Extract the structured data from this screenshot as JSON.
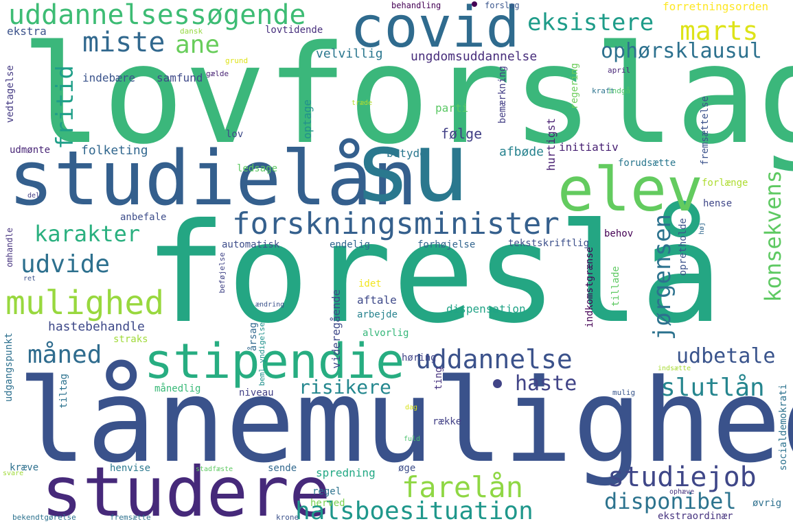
{
  "words": [
    {
      "text": "lovforslag",
      "color": "#3bb77b"
    },
    {
      "text": "foreslå",
      "color": "#24a683"
    },
    {
      "text": "lånemulighed",
      "color": "#3a528b"
    },
    {
      "text": "studielån",
      "color": "#345f8d"
    },
    {
      "text": "su",
      "color": "#2a788e"
    },
    {
      "text": "covid",
      "color": "#2f6b8e"
    },
    {
      "text": "studere",
      "color": "#46297a"
    },
    {
      "text": "elev",
      "color": "#63cb5f"
    },
    {
      "text": "stipendie",
      "color": "#27ad81"
    },
    {
      "text": "forskningsminister",
      "color": "#35608d"
    },
    {
      "text": "uddannelsessøgende",
      "color": "#3dbc74"
    },
    {
      "text": "mulighed",
      "color": "#98d83e"
    },
    {
      "text": "udvide",
      "color": "#2d708e"
    },
    {
      "text": "karakter",
      "color": "#2ab07f"
    },
    {
      "text": "miste",
      "color": "#31688e"
    },
    {
      "text": "ane",
      "color": "#68cd5b"
    },
    {
      "text": "fritid",
      "color": "#1f9f88"
    },
    {
      "text": "eksistere",
      "color": "#1e9c89"
    },
    {
      "text": "marts",
      "color": "#dde318"
    },
    {
      "text": "ophørsklausul",
      "color": "#2d718e"
    },
    {
      "text": "uddannelse",
      "color": "#3b528b"
    },
    {
      "text": "udbetale",
      "color": "#3a548c"
    },
    {
      "text": "haste",
      "color": "#414487"
    },
    {
      "text": "slutlån",
      "color": "#25858e"
    },
    {
      "text": "risikere",
      "color": "#24878e"
    },
    {
      "text": "måned",
      "color": "#2f6c8e"
    },
    {
      "text": "studiejob",
      "color": "#3f4788"
    },
    {
      "text": "farelån",
      "color": "#8fd744"
    },
    {
      "text": "halsboesituation",
      "color": "#1f978b"
    },
    {
      "text": "disponibel",
      "color": "#2c738e"
    },
    {
      "text": "jørgensen",
      "color": "#2c728e"
    },
    {
      "text": "konsekvens",
      "color": "#5ec962"
    },
    {
      "text": "velvillig",
      "color": "#2a768e"
    },
    {
      "text": "ungdomsuddannelse",
      "color": "#472d7b"
    },
    {
      "text": "indebære",
      "color": "#3a538b"
    },
    {
      "text": "samfund",
      "color": "#3e4989"
    },
    {
      "text": "folketing",
      "color": "#31678e"
    },
    {
      "text": "følge",
      "color": "#424086"
    },
    {
      "text": "afbøde",
      "color": "#26828e"
    },
    {
      "text": "parti",
      "color": "#5ac864"
    },
    {
      "text": "optage",
      "color": "#21918c"
    },
    {
      "text": "bemærkning",
      "color": "#433e85"
    },
    {
      "text": "hurtigst",
      "color": "#481f71"
    },
    {
      "text": "initiativ",
      "color": "#482173"
    },
    {
      "text": "forudsætte",
      "color": "#2a778e"
    },
    {
      "text": "regering",
      "color": "#6ccd5a"
    },
    {
      "text": "betyde",
      "color": "#2a778e"
    },
    {
      "text": "ledsage",
      "color": "#5ec962"
    },
    {
      "text": "lov",
      "color": "#3e4a89"
    },
    {
      "text": "udmønte",
      "color": "#482576"
    },
    {
      "text": "ekstra",
      "color": "#3b528b"
    },
    {
      "text": "lovtidende",
      "color": "#472f7d"
    },
    {
      "text": "dansk",
      "color": "#95d840"
    },
    {
      "text": "grund",
      "color": "#dde318"
    },
    {
      "text": "gælde",
      "color": "#482475"
    },
    {
      "text": "vedtagelse",
      "color": "#443a83"
    },
    {
      "text": "forretningsorden",
      "color": "#fde725"
    },
    {
      "text": "behandling",
      "color": "#440154"
    },
    {
      "text": "forslag",
      "color": "#39558c"
    },
    {
      "text": "april",
      "color": "#482677"
    },
    {
      "text": "kraft",
      "color": "#2c738e"
    },
    {
      "text": "indgå",
      "color": "#4fc46a"
    },
    {
      "text": "træde",
      "color": "#b5de2b"
    },
    {
      "text": "fremsættelse",
      "color": "#3b528b"
    },
    {
      "text": "forlænge",
      "color": "#addc30"
    },
    {
      "text": "hense",
      "color": "#3f4788"
    },
    {
      "text": "behov",
      "color": "#440154"
    },
    {
      "text": "opretholde",
      "color": "#3b528b"
    },
    {
      "text": "høj",
      "color": "#31688e"
    },
    {
      "text": "tekstskriftlig",
      "color": "#3c4f8a"
    },
    {
      "text": "forhøjelse",
      "color": "#32658e"
    },
    {
      "text": "endelig",
      "color": "#31678e"
    },
    {
      "text": "automatisk",
      "color": "#3d4d8a"
    },
    {
      "text": "anbefale",
      "color": "#3d4d8a"
    },
    {
      "text": "del",
      "color": "#433e85"
    },
    {
      "text": "omhandle",
      "color": "#46337f"
    },
    {
      "text": "ret",
      "color": "#3b528b"
    },
    {
      "text": "beføjelse",
      "color": "#414487"
    },
    {
      "text": "idet",
      "color": "#f1e51d"
    },
    {
      "text": "ændring",
      "color": "#3b528b"
    },
    {
      "text": "årsag",
      "color": "#31688e"
    },
    {
      "text": "videregående",
      "color": "#3e4989"
    },
    {
      "text": "beml yndigelse",
      "color": "#21918c"
    },
    {
      "text": "aftale",
      "color": "#3e4989"
    },
    {
      "text": "arbejde",
      "color": "#26828e"
    },
    {
      "text": "dispensation",
      "color": "#20a386"
    },
    {
      "text": "indkomstgrænse",
      "color": "#440154"
    },
    {
      "text": "tillade",
      "color": "#5ec962"
    },
    {
      "text": "hastebehandle",
      "color": "#3e4989"
    },
    {
      "text": "alvorlig",
      "color": "#34b679"
    },
    {
      "text": "straks",
      "color": "#a0da39"
    },
    {
      "text": "udgangspunkt",
      "color": "#2d708e"
    },
    {
      "text": "tiltag",
      "color": "#2c728e"
    },
    {
      "text": "månedlig",
      "color": "#38b977"
    },
    {
      "text": "niveau",
      "color": "#424086"
    },
    {
      "text": "høring",
      "color": "#414487"
    },
    {
      "text": "ting",
      "color": "#46337f"
    },
    {
      "text": "indsætte",
      "color": "#a8db34"
    },
    {
      "text": "mulig",
      "color": "#39568c"
    },
    {
      "text": "socialdemokrati",
      "color": "#2c728e"
    },
    {
      "text": "dag",
      "color": "#d8e219"
    },
    {
      "text": "række",
      "color": "#424086"
    },
    {
      "text": "fuld",
      "color": "#4ac16d"
    },
    {
      "text": "kræve",
      "color": "#2d708e"
    },
    {
      "text": "svare",
      "color": "#a0da39"
    },
    {
      "text": "henvise",
      "color": "#2a788e"
    },
    {
      "text": "stadfæste",
      "color": "#5ec962"
    },
    {
      "text": "sende",
      "color": "#31688e"
    },
    {
      "text": "spredning",
      "color": "#22a884"
    },
    {
      "text": "øge",
      "color": "#3d4e8a"
    },
    {
      "text": "regel",
      "color": "#2c728e"
    },
    {
      "text": "herved",
      "color": "#7ad151"
    },
    {
      "text": "ophæve",
      "color": "#46337f"
    },
    {
      "text": "øvrig",
      "color": "#2d708e"
    },
    {
      "text": "bekendtgørelse",
      "color": "#2c728e"
    },
    {
      "text": "fremsætte",
      "color": "#2d718e"
    },
    {
      "text": "krone",
      "color": "#3b528b"
    },
    {
      "text": "ekstraordinær",
      "color": "#46337f"
    }
  ]
}
